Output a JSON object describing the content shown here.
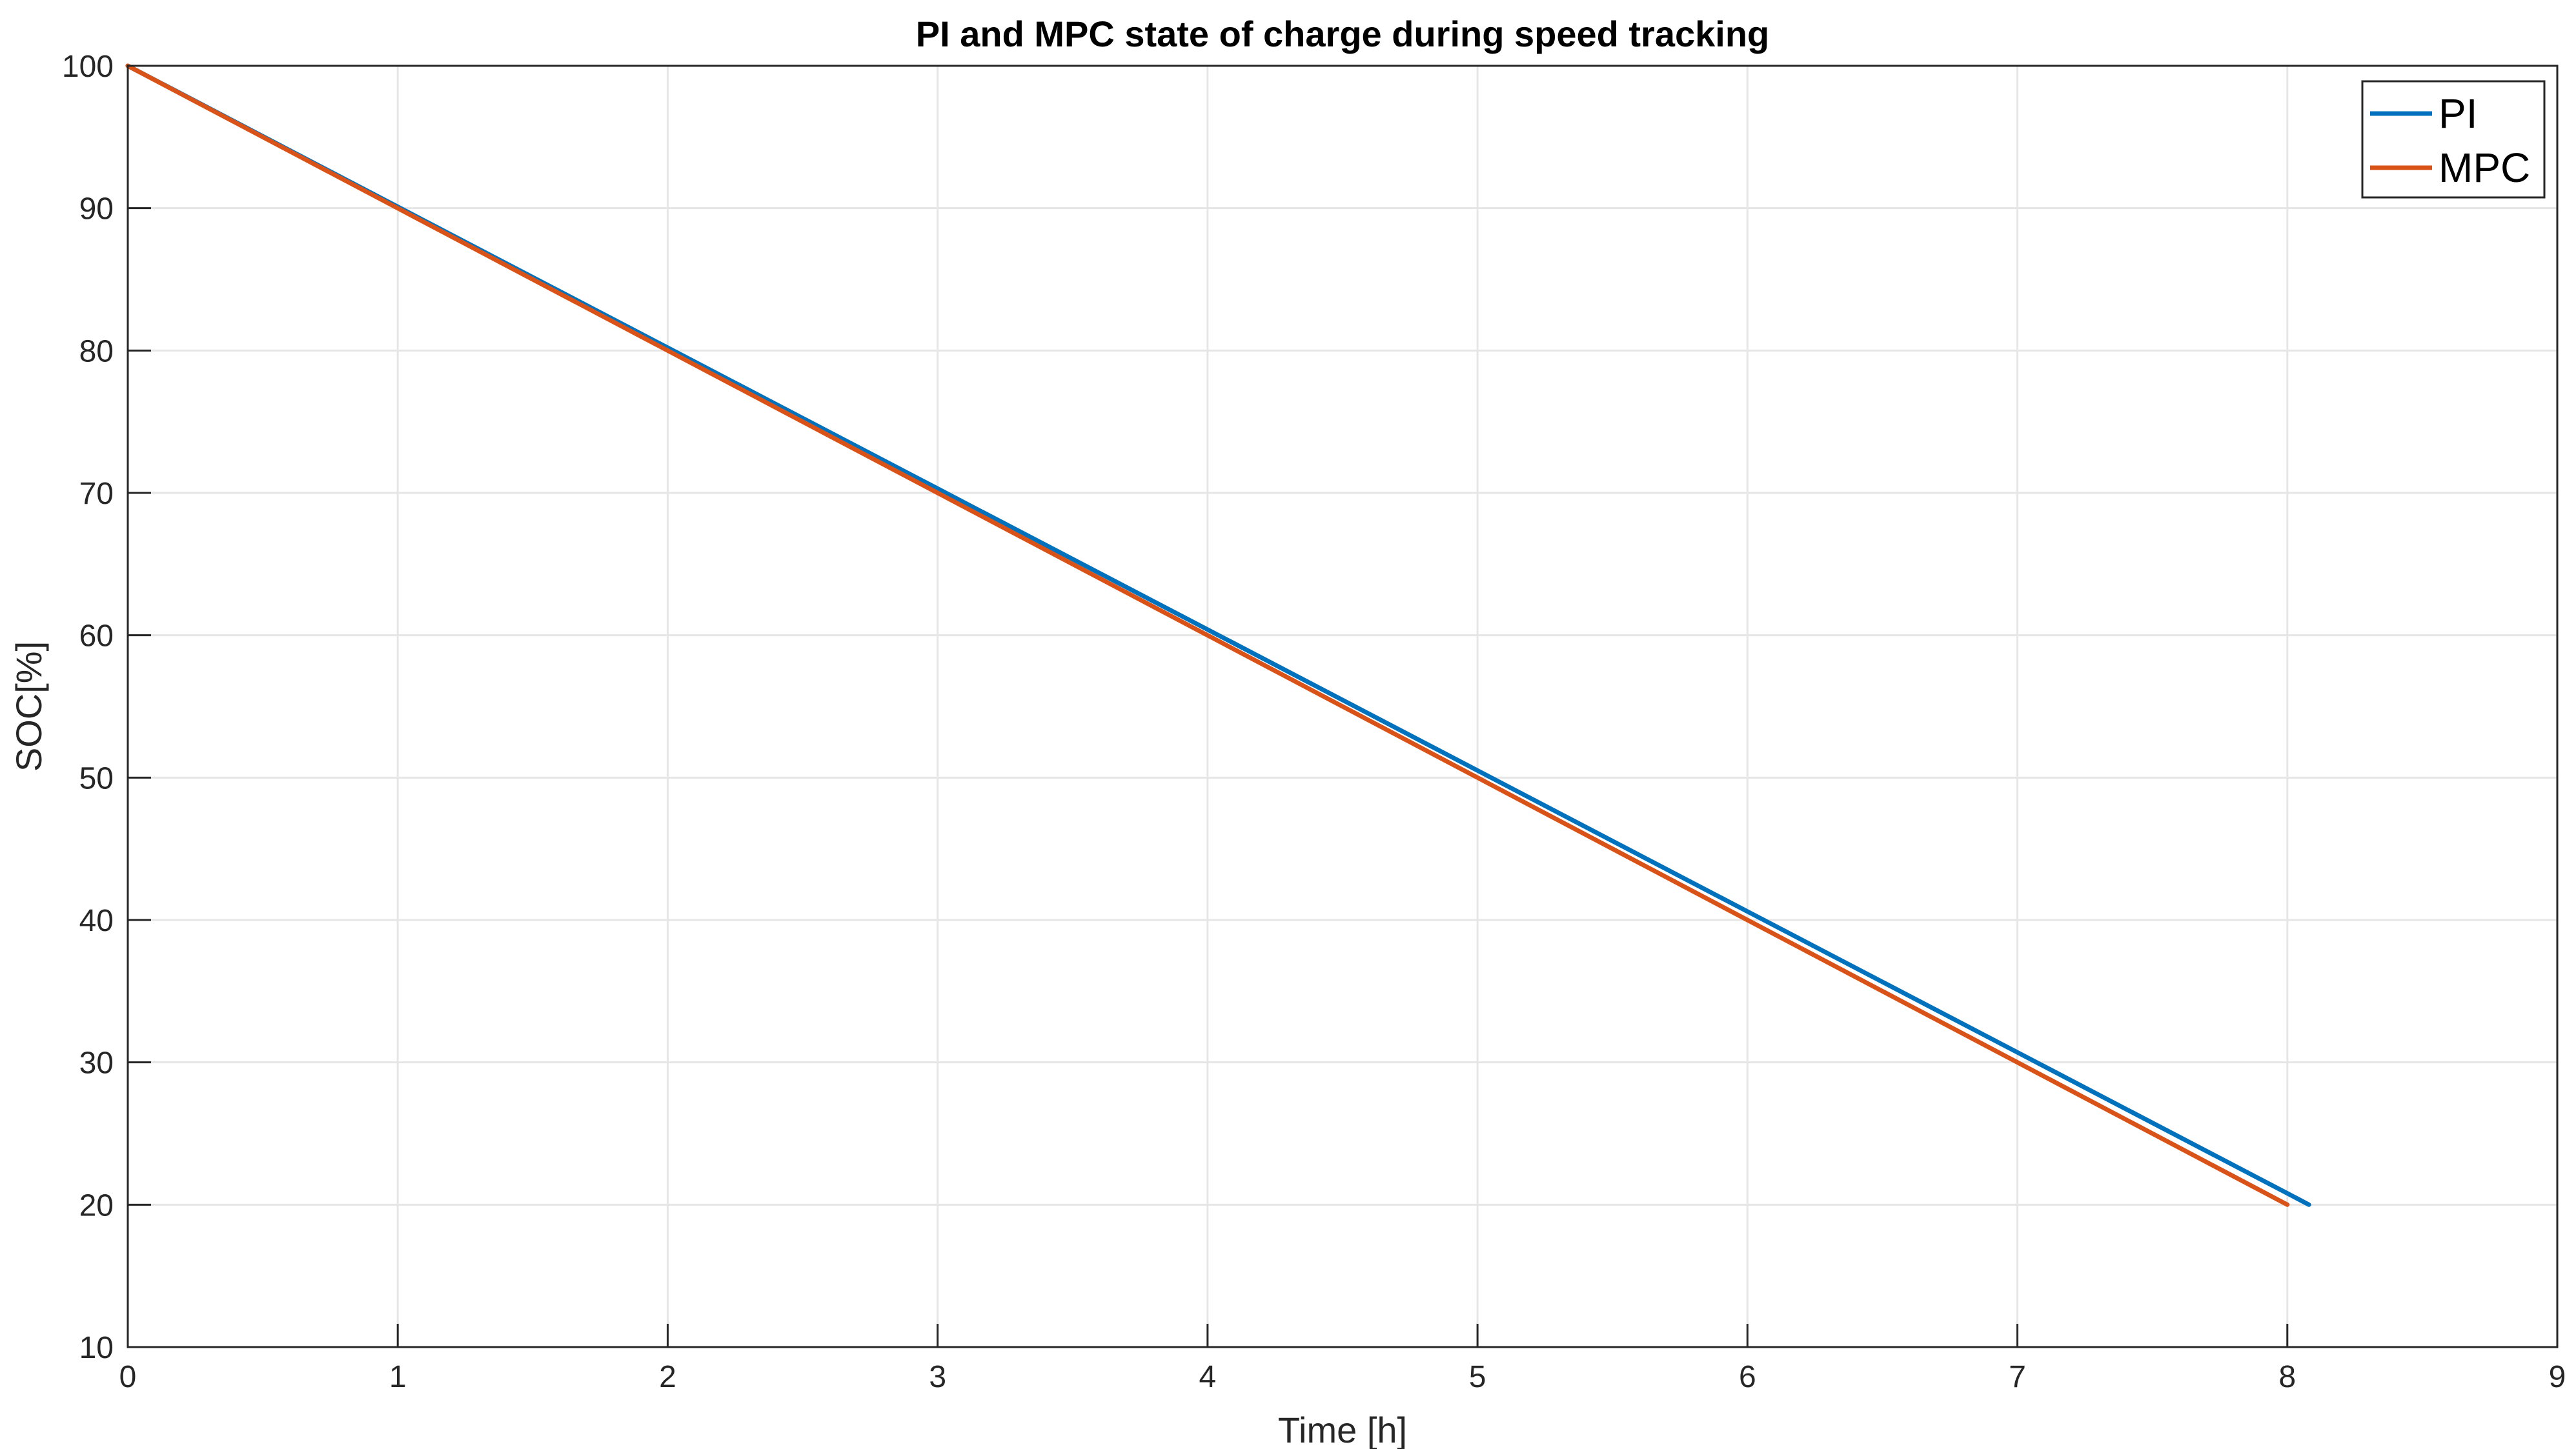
{
  "chart_data": {
    "type": "line",
    "title": "PI and MPC state of charge during speed tracking",
    "xlabel": "Time [h]",
    "ylabel": "SOC[%]",
    "xlim": [
      0,
      9
    ],
    "ylim": [
      10,
      100
    ],
    "xticks": [
      "0",
      "1",
      "2",
      "3",
      "4",
      "5",
      "6",
      "7",
      "8",
      "9"
    ],
    "yticks": [
      "10",
      "20",
      "30",
      "40",
      "50",
      "60",
      "70",
      "80",
      "90",
      "100"
    ],
    "grid": true,
    "legend_position": "top-right",
    "series": [
      {
        "name": "PI",
        "color": "#0072BD",
        "x": [
          0,
          1,
          2,
          3,
          4,
          5,
          6,
          7,
          8,
          8.08
        ],
        "y": [
          100,
          90.1,
          80.2,
          70.3,
          60.4,
          50.5,
          40.6,
          30.7,
          20.8,
          20
        ]
      },
      {
        "name": "MPC",
        "color": "#D95319",
        "x": [
          0,
          1,
          2,
          3,
          4,
          5,
          6,
          7,
          8
        ],
        "y": [
          100,
          90,
          80,
          70,
          60,
          50,
          40,
          30,
          20
        ]
      }
    ]
  }
}
